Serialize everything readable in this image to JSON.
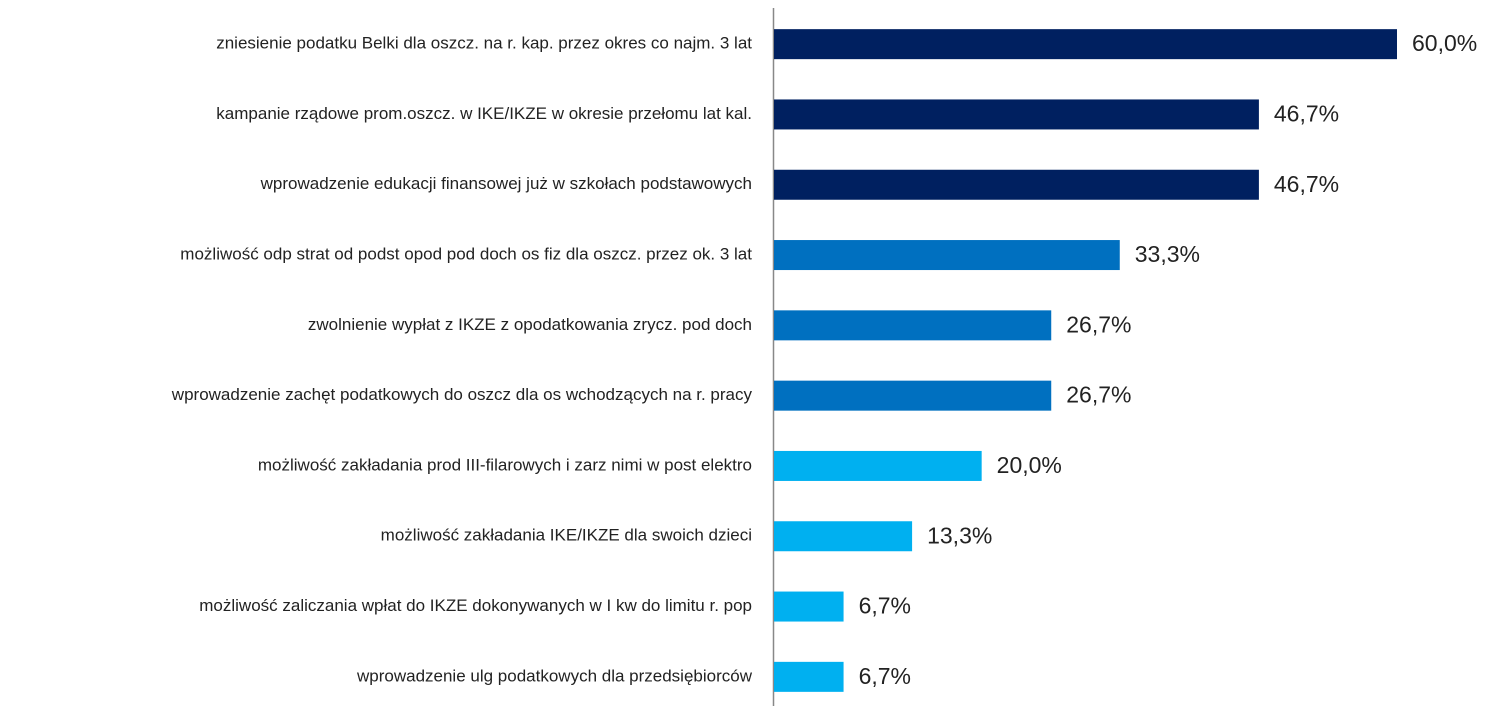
{
  "chart_data": {
    "type": "bar",
    "orientation": "horizontal",
    "categories": [
      "zniesienie podatku Belki dla oszcz. na r. kap. przez okres co najm. 3 lat",
      "kampanie rządowe prom.oszcz. w IKE/IKZE w okresie przełomu lat kal.",
      "wprowadzenie edukacji finansowej już w szkołach podstawowych",
      "możliwość odp strat od podst opod pod doch os fiz dla oszcz. przez ok. 3 lat",
      "zwolnienie wypłat z IKZE z opodatkowania zrycz. pod doch",
      "wprowadzenie zachęt podatkowych do oszcz dla os wchodzących na r. pracy",
      "możliwość zakładania prod III-filarowych i zarz nimi w post elektro",
      "możliwość zakładania IKE/IKZE dla swoich dzieci",
      "możliwość zaliczania wpłat do IKZE dokonywanych w I kw do limitu r. pop",
      "wprowadzenie ulg podatkowych dla przedsiębiorców"
    ],
    "values": [
      60.0,
      46.7,
      46.7,
      33.3,
      26.7,
      26.7,
      20.0,
      13.3,
      6.7,
      6.7
    ],
    "value_labels": [
      "60,0%",
      "46,7%",
      "46,7%",
      "33,3%",
      "26,7%",
      "26,7%",
      "20,0%",
      "13,3%",
      "6,7%",
      "6,7%"
    ],
    "colors": [
      "#002060",
      "#002060",
      "#002060",
      "#0070c0",
      "#0070c0",
      "#0070c0",
      "#00b0f0",
      "#00b0f0",
      "#00b0f0",
      "#00b0f0"
    ]
  }
}
